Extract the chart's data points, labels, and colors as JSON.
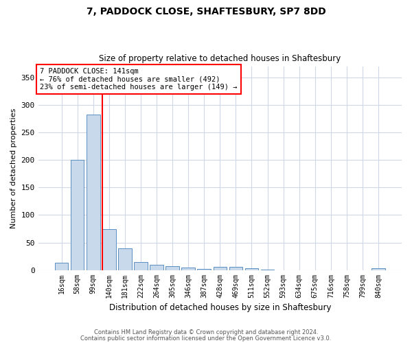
{
  "title1": "7, PADDOCK CLOSE, SHAFTESBURY, SP7 8DD",
  "title2": "Size of property relative to detached houses in Shaftesbury",
  "xlabel": "Distribution of detached houses by size in Shaftesbury",
  "ylabel": "Number of detached properties",
  "categories": [
    "16sqm",
    "58sqm",
    "99sqm",
    "140sqm",
    "181sqm",
    "222sqm",
    "264sqm",
    "305sqm",
    "346sqm",
    "387sqm",
    "428sqm",
    "469sqm",
    "511sqm",
    "552sqm",
    "593sqm",
    "634sqm",
    "675sqm",
    "716sqm",
    "758sqm",
    "799sqm",
    "840sqm"
  ],
  "values": [
    13,
    201,
    283,
    74,
    40,
    15,
    10,
    7,
    5,
    2,
    6,
    6,
    3,
    1,
    0,
    0,
    0,
    0,
    0,
    0,
    3
  ],
  "bar_color": "#c9d9ec",
  "bar_edge_color": "#5a8fc0",
  "vline_index": 3,
  "annotation_text_line1": "7 PADDOCK CLOSE: 141sqm",
  "annotation_text_line2": "← 76% of detached houses are smaller (492)",
  "annotation_text_line3": "23% of semi-detached houses are larger (149) →",
  "annotation_box_color": "white",
  "annotation_box_edge_color": "red",
  "vline_color": "red",
  "ylim": [
    0,
    370
  ],
  "yticks": [
    0,
    50,
    100,
    150,
    200,
    250,
    300,
    350
  ],
  "footer1": "Contains HM Land Registry data © Crown copyright and database right 2024.",
  "footer2": "Contains public sector information licensed under the Open Government Licence v3.0.",
  "background_color": "#ffffff",
  "grid_color": "#d0d8e8"
}
